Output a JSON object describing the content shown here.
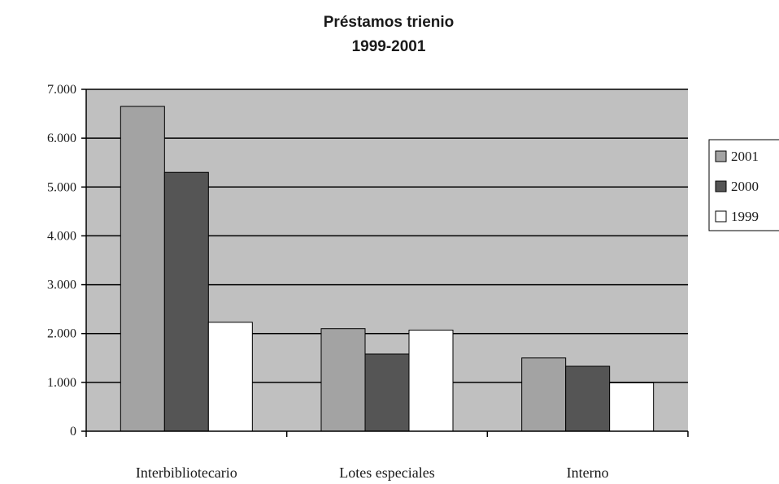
{
  "chart_data": {
    "type": "bar",
    "title": "Préstamos trienio",
    "subtitle": "1999-2001",
    "categories": [
      "Interbibliotecario",
      "Lotes especiales",
      "Interno"
    ],
    "series": [
      {
        "name": "2001",
        "values": [
          6650,
          2100,
          1500
        ]
      },
      {
        "name": "2000",
        "values": [
          5300,
          1580,
          1330
        ]
      },
      {
        "name": "1999",
        "values": [
          2230,
          2070,
          990
        ]
      }
    ],
    "ylim": [
      0,
      7000
    ],
    "yticks": [
      0,
      1000,
      2000,
      3000,
      4000,
      5000,
      6000,
      7000
    ],
    "ytick_labels": [
      "0",
      "1.000",
      "2.000",
      "3.000",
      "4.000",
      "5.000",
      "6.000",
      "7.000"
    ],
    "grid": true,
    "legend_position": "right",
    "colors": {
      "plot_background": "#c0c0c0",
      "series": [
        "#a3a3a3",
        "#555555",
        "#ffffff"
      ],
      "gridline": "#000000"
    }
  }
}
